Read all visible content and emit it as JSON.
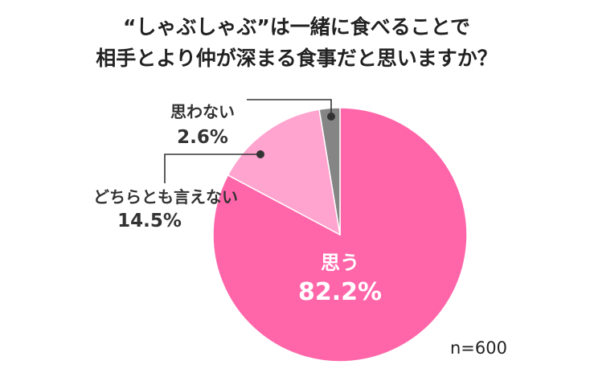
{
  "chart_data": {
    "type": "pie",
    "title_lines": [
      "“しゃぶしゃぶ”は一緒に食べることで",
      "相手とより仲が深まる食事だと思いますか？"
    ],
    "slices": [
      {
        "label": "思う",
        "value": 82.2,
        "value_label": "82.2%",
        "color": "#ff66aa"
      },
      {
        "label": "どちらとも言えない",
        "value": 14.5,
        "value_label": "14.5%",
        "color": "#ffa3cf"
      },
      {
        "label": "思わない",
        "value": 2.6,
        "value_label": "2.6%",
        "color": "#858585"
      }
    ],
    "start": "12 o'clock",
    "direction": "clockwise",
    "note": "n=600"
  }
}
